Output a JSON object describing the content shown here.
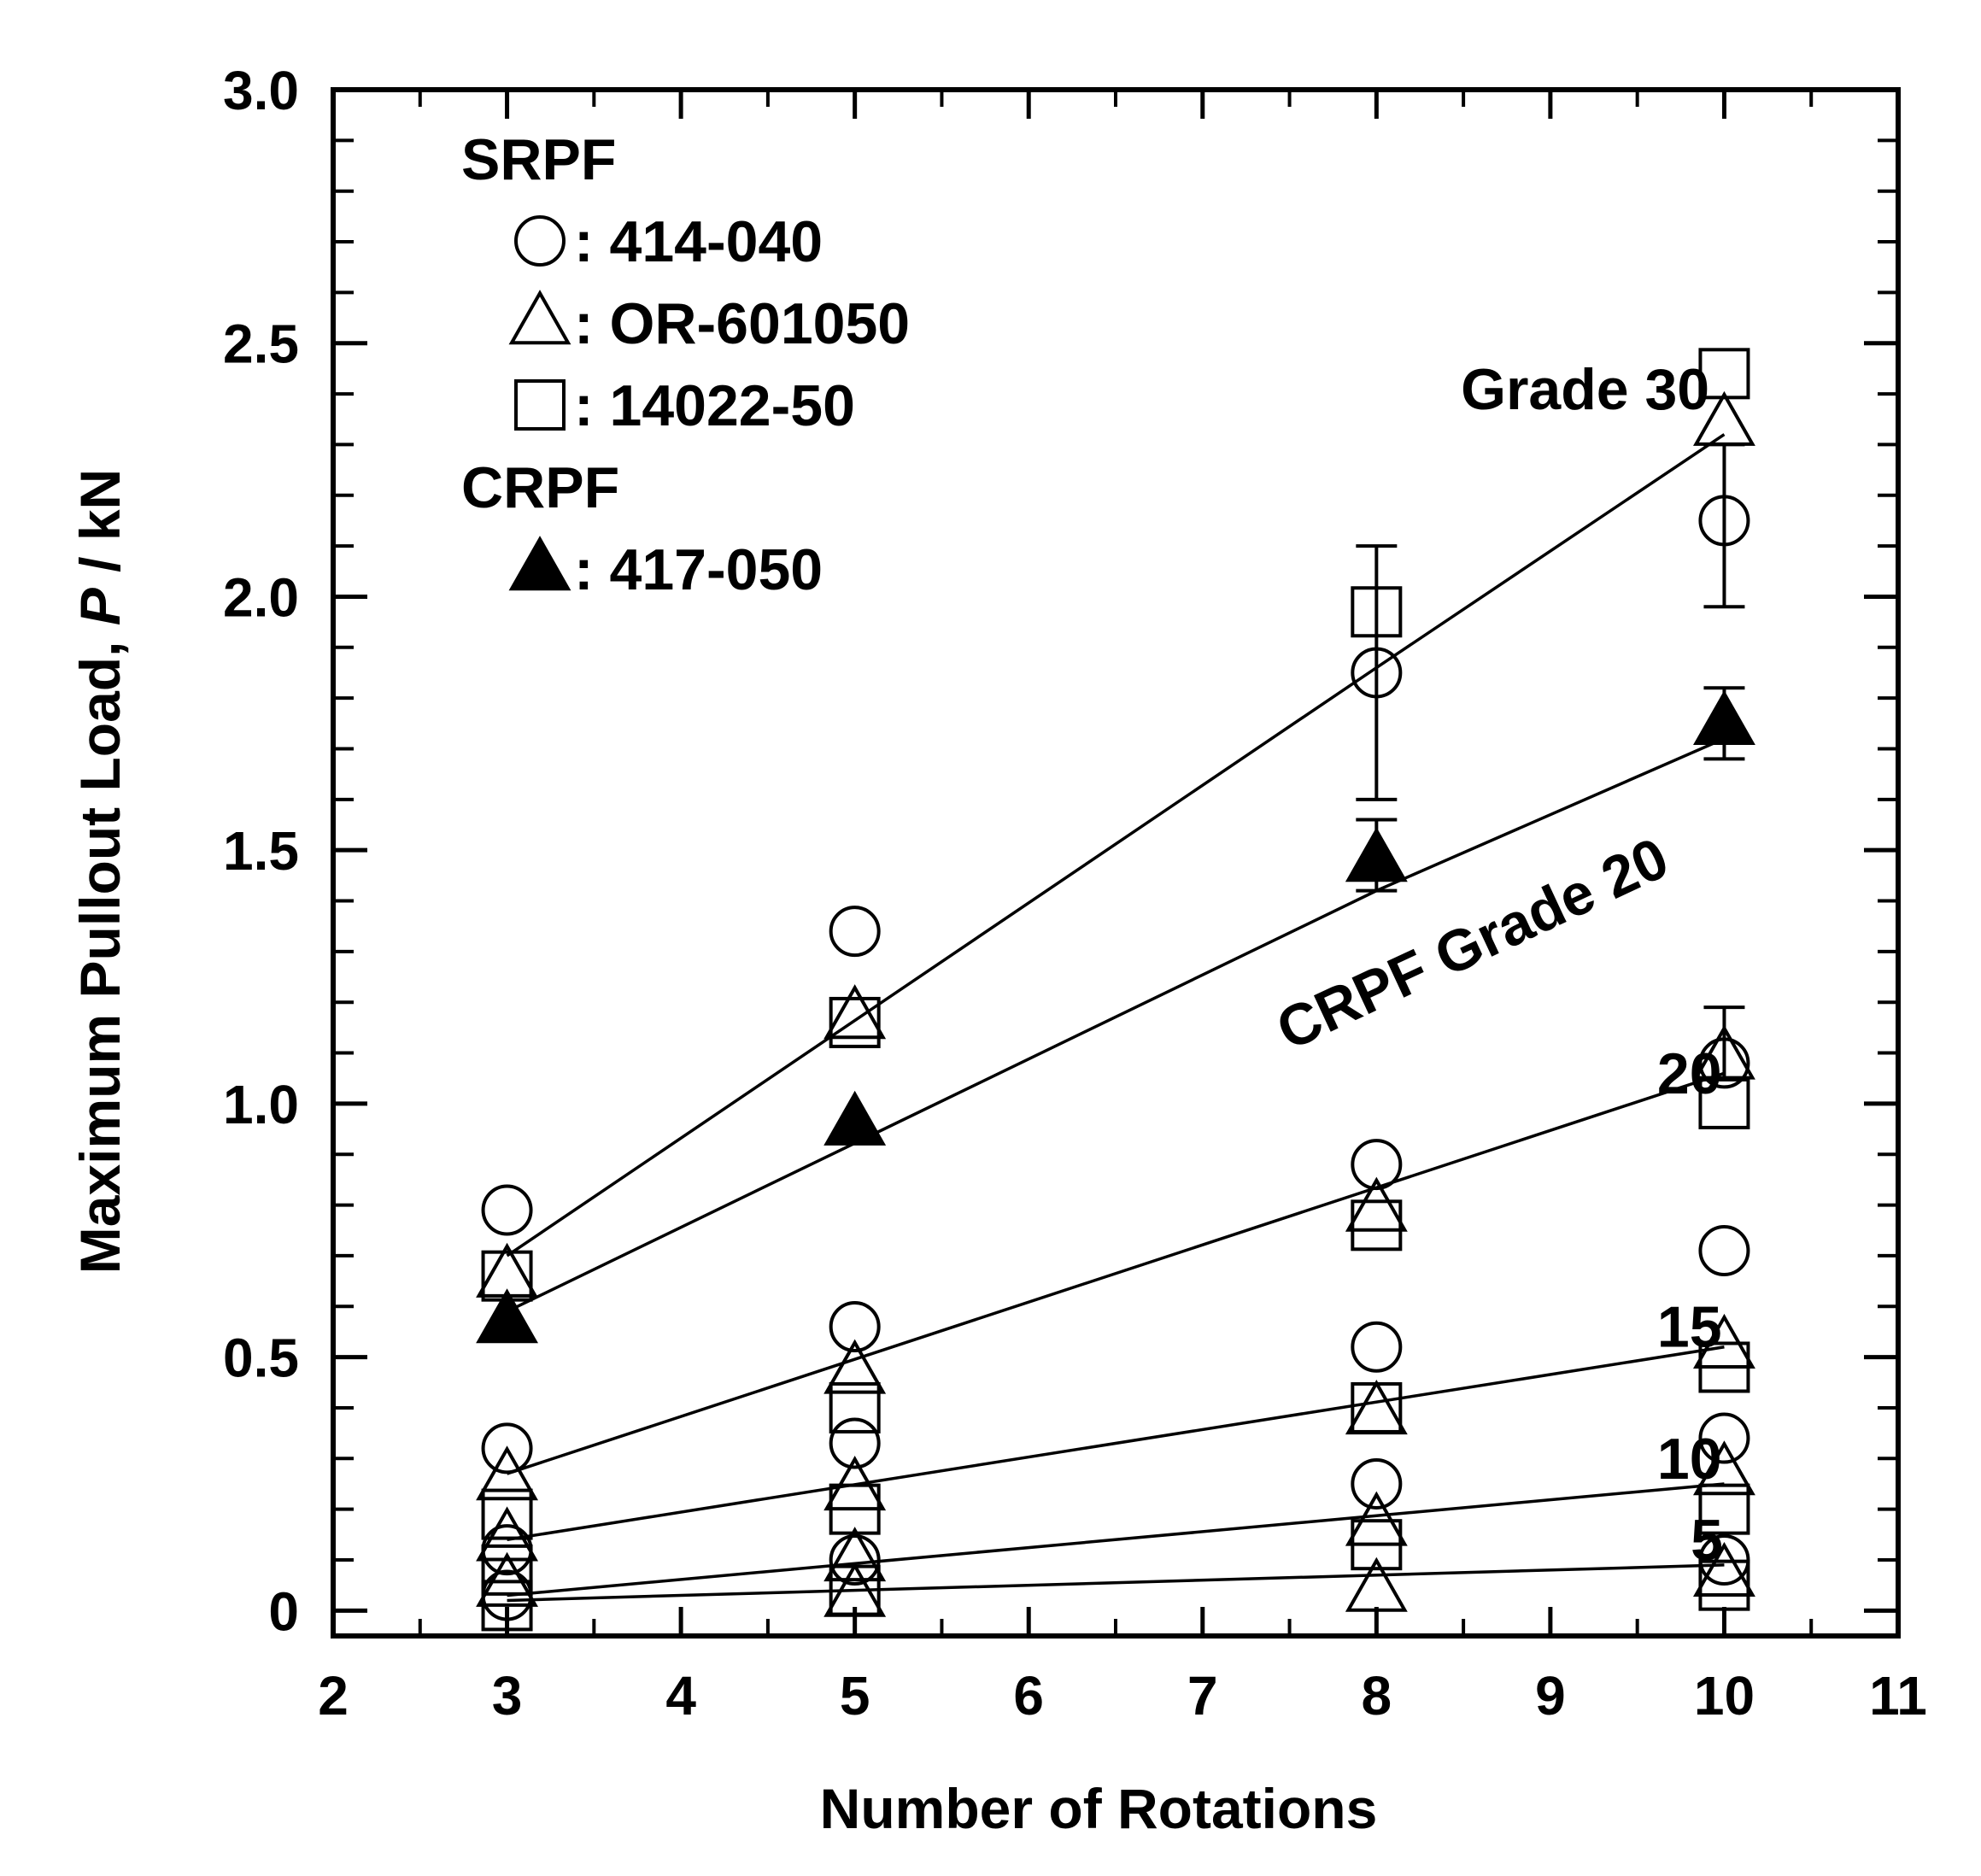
{
  "chart_data": {
    "type": "scatter",
    "xlabel": "Number of Rotations",
    "ylabel": "Maximum Pullout Load, ",
    "ylabel_var": "P",
    "ylabel_unit": " / kN",
    "xlim": [
      2,
      11
    ],
    "ylim": [
      -0.05,
      3.0
    ],
    "xticks": [
      2,
      3,
      4,
      5,
      6,
      7,
      8,
      9,
      10,
      11
    ],
    "xtick_labels": [
      "2",
      "3",
      "4",
      "5",
      "6",
      "7",
      "8",
      "9",
      "10",
      "11"
    ],
    "yticks": [
      0,
      0.5,
      1.0,
      1.5,
      2.0,
      2.5,
      3.0
    ],
    "ytick_labels": [
      "0",
      "0.5",
      "1.0",
      "1.5",
      "2.0",
      "2.5",
      "3.0"
    ],
    "legend": {
      "groups": [
        {
          "title": "SRPF",
          "entries": [
            {
              "marker": "circle",
              "label": ": 414-040"
            },
            {
              "marker": "triangle",
              "label": ": OR-601050"
            },
            {
              "marker": "square",
              "label": ": 14022-50"
            }
          ]
        },
        {
          "title": "CRPF",
          "entries": [
            {
              "marker": "triangle-filled",
              "label": ": 417-050"
            }
          ]
        }
      ]
    },
    "fit_lines": [
      {
        "name": "Grade 30",
        "x": [
          3,
          8,
          10
        ],
        "y": [
          0.7,
          1.86,
          2.32
        ]
      },
      {
        "name": "CRPF Grade 20",
        "x": [
          3,
          8,
          10
        ],
        "y": [
          0.59,
          1.42,
          1.72
        ]
      },
      {
        "name": "20",
        "x": [
          3,
          10
        ],
        "y": [
          0.27,
          1.06
        ]
      },
      {
        "name": "15",
        "x": [
          3,
          10
        ],
        "y": [
          0.14,
          0.52
        ]
      },
      {
        "name": "10",
        "x": [
          3,
          10
        ],
        "y": [
          0.03,
          0.25
        ]
      },
      {
        "name": "5",
        "x": [
          3,
          10
        ],
        "y": [
          0.02,
          0.09
        ]
      }
    ],
    "series": [
      {
        "name": "414-040",
        "group": "SRPF",
        "marker": "circle",
        "points": [
          [
            3,
            0.79
          ],
          [
            3,
            0.32
          ],
          [
            3,
            0.12
          ],
          [
            3,
            0.03
          ],
          [
            5,
            1.34
          ],
          [
            5,
            0.56
          ],
          [
            5,
            0.33
          ],
          [
            5,
            0.1
          ],
          [
            8,
            1.85
          ],
          [
            8,
            0.88
          ],
          [
            8,
            0.52
          ],
          [
            8,
            0.25
          ],
          [
            10,
            2.15
          ],
          [
            10,
            1.08
          ],
          [
            10,
            0.71
          ],
          [
            10,
            0.34
          ],
          [
            10,
            0.1
          ]
        ]
      },
      {
        "name": "OR-601050",
        "group": "SRPF",
        "marker": "triangle",
        "points": [
          [
            3,
            0.66
          ],
          [
            3,
            0.26
          ],
          [
            3,
            0.14
          ],
          [
            3,
            0.05
          ],
          [
            5,
            1.17
          ],
          [
            5,
            0.47
          ],
          [
            5,
            0.24
          ],
          [
            5,
            0.1
          ],
          [
            5,
            0.03
          ],
          [
            8,
            0.79
          ],
          [
            8,
            0.39
          ],
          [
            8,
            0.17
          ],
          [
            8,
            0.04
          ],
          [
            10,
            2.34
          ],
          [
            10,
            1.09
          ],
          [
            10,
            0.52
          ],
          [
            10,
            0.27
          ],
          [
            10,
            0.07
          ]
        ]
      },
      {
        "name": "14022-50",
        "group": "SRPF",
        "marker": "square",
        "points": [
          [
            3,
            0.66
          ],
          [
            3,
            0.19
          ],
          [
            3,
            0.08
          ],
          [
            3,
            0.01
          ],
          [
            5,
            1.16
          ],
          [
            5,
            0.4
          ],
          [
            5,
            0.2
          ],
          [
            5,
            0.04
          ],
          [
            8,
            1.97
          ],
          [
            8,
            0.76
          ],
          [
            8,
            0.4
          ],
          [
            8,
            0.13
          ],
          [
            10,
            2.44
          ],
          [
            10,
            1.0
          ],
          [
            10,
            0.48
          ],
          [
            10,
            0.2
          ],
          [
            10,
            0.05
          ]
        ]
      },
      {
        "name": "417-050",
        "group": "CRPF",
        "marker": "triangle-filled",
        "points": [
          [
            3,
            0.57
          ],
          [
            5,
            0.96
          ],
          [
            8,
            1.48
          ],
          [
            10,
            1.75
          ]
        ]
      }
    ],
    "error_bars": [
      {
        "x": 8,
        "low": 1.6,
        "high": 2.1
      },
      {
        "x": 8,
        "low": 1.42,
        "high": 1.56
      },
      {
        "x": 10,
        "low": 1.98,
        "high": 2.3
      },
      {
        "x": 10,
        "low": 1.68,
        "high": 1.82
      },
      {
        "x": 10,
        "low": 1.05,
        "high": 1.19
      }
    ],
    "annotations": [
      {
        "text": "Grade 30",
        "x": 9.2,
        "y": 2.37
      },
      {
        "text": "CRPF Grade 20",
        "x": 8.6,
        "y": 1.28,
        "rotate": -25
      },
      {
        "text": "20",
        "x": 9.8,
        "y": 1.02
      },
      {
        "text": "15",
        "x": 9.8,
        "y": 0.52
      },
      {
        "text": "10",
        "x": 9.8,
        "y": 0.26
      },
      {
        "text": "5",
        "x": 9.9,
        "y": 0.1
      }
    ]
  }
}
